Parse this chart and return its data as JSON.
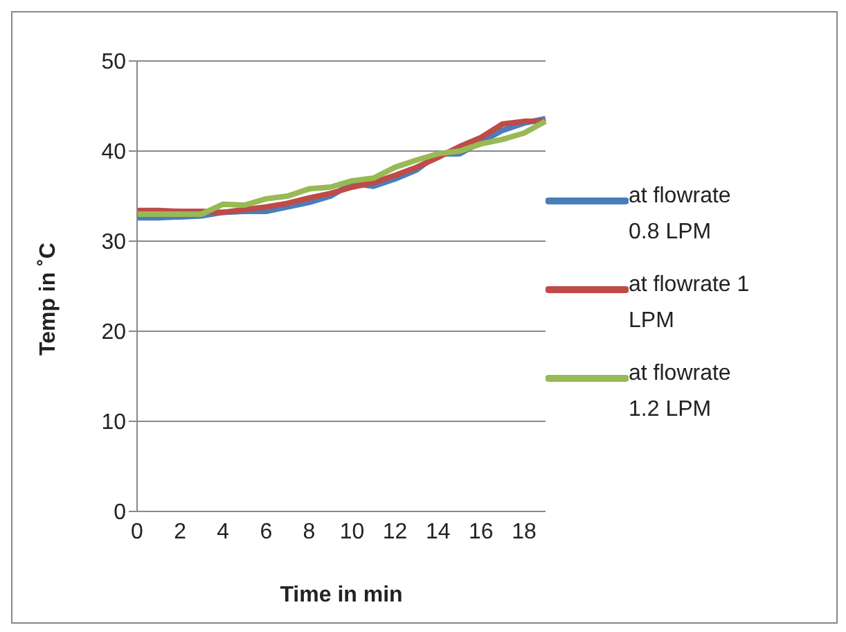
{
  "chart_data": {
    "type": "line",
    "xlabel": "Time in min",
    "ylabel": "Temp in ˚C",
    "categories": [
      "0",
      null,
      "2",
      null,
      "4",
      null,
      "6",
      null,
      "8",
      null,
      "10",
      null,
      "12",
      null,
      "14",
      null,
      "16",
      null,
      "18",
      null
    ],
    "series": [
      {
        "name": "at flowrate 0.8 LPM",
        "color": "#4a7ebb",
        "values": [
          32.6,
          32.6,
          32.7,
          32.8,
          33.2,
          33.3,
          33.3,
          33.8,
          34.3,
          35,
          36.4,
          36.1,
          36.9,
          37.9,
          39.7,
          39.7,
          41,
          42.3,
          43.1,
          43.6
        ]
      },
      {
        "name": "at flowrate 1 LPM",
        "color": "#be4b48",
        "values": [
          33.4,
          33.4,
          33.3,
          33.3,
          33.2,
          33.5,
          33.8,
          34.2,
          34.8,
          35.3,
          36,
          36.5,
          37.3,
          38.2,
          39.3,
          40.5,
          41.5,
          43,
          43.3,
          43.3
        ]
      },
      {
        "name": "at flowrate 1.2 LPM",
        "color": "#98b954",
        "values": [
          33,
          33,
          33,
          33,
          34.1,
          34,
          34.7,
          35,
          35.8,
          36,
          36.7,
          37,
          38.2,
          39,
          39.7,
          40,
          40.8,
          41.3,
          42,
          43.3
        ]
      }
    ],
    "ylim": [
      0,
      50
    ],
    "yticks": [
      0,
      10,
      20,
      30,
      40,
      50
    ],
    "grid": "y",
    "legend": "right",
    "marker": "none",
    "line_style": "solid"
  }
}
